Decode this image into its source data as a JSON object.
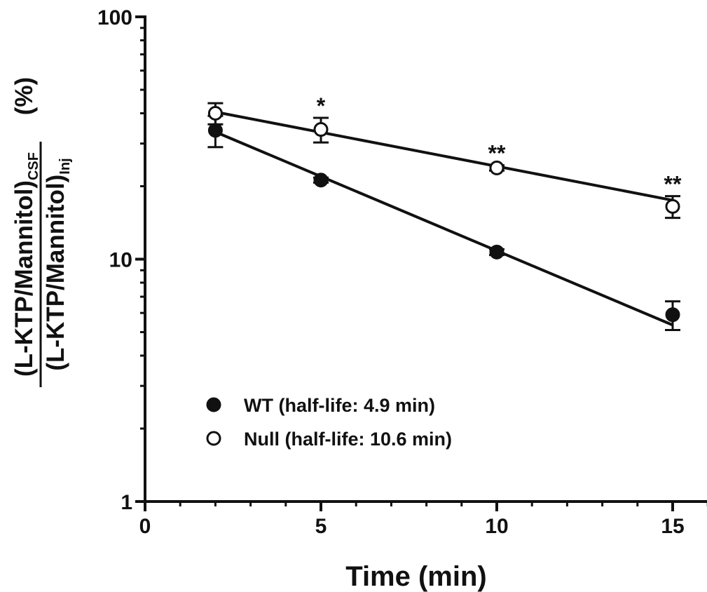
{
  "chart_data": {
    "type": "scatter",
    "xlabel": "Time (min)",
    "ylabel": {
      "numerator": "(L-KTP/Mannitol)",
      "numerator_sub": "CSF",
      "denominator": "(L-KTP/Mannitol)",
      "denominator_sub": "Inj",
      "unit": "(%)"
    },
    "xlim": [
      0,
      16
    ],
    "ylim": [
      1,
      100
    ],
    "yscale": "log",
    "xticks": [
      "0",
      "5",
      "10",
      "15"
    ],
    "yticks": [
      "1",
      "10",
      "100"
    ],
    "legend_position": "bottom-left",
    "series": [
      {
        "name": "WT (half-life: 4.9 min)",
        "marker": "filled-circle",
        "points": [
          {
            "x": 2,
            "y": 34,
            "err": 5
          },
          {
            "x": 5,
            "y": 21.2,
            "err": 0.5
          },
          {
            "x": 10,
            "y": 10.7,
            "err": 0.3
          },
          {
            "x": 15,
            "y": 5.9,
            "err": 0.8
          }
        ],
        "fit": [
          [
            2,
            33.5
          ],
          [
            15,
            5.35
          ]
        ]
      },
      {
        "name": "Null (half-life: 10.6 min)",
        "marker": "open-circle",
        "points": [
          {
            "x": 2,
            "y": 40,
            "err": 4
          },
          {
            "x": 5,
            "y": 34.3,
            "err": 4
          },
          {
            "x": 10,
            "y": 23.8,
            "err": 0.6
          },
          {
            "x": 15,
            "y": 16.5,
            "err": 1.7
          }
        ],
        "fit": [
          [
            2,
            40.5
          ],
          [
            15,
            17.5
          ]
        ]
      }
    ],
    "annotations": [
      {
        "x": 5,
        "text": "*"
      },
      {
        "x": 10,
        "text": "**"
      },
      {
        "x": 15,
        "text": "**"
      }
    ],
    "colors": {
      "ink": "#111111",
      "background": "#ffffff"
    }
  }
}
